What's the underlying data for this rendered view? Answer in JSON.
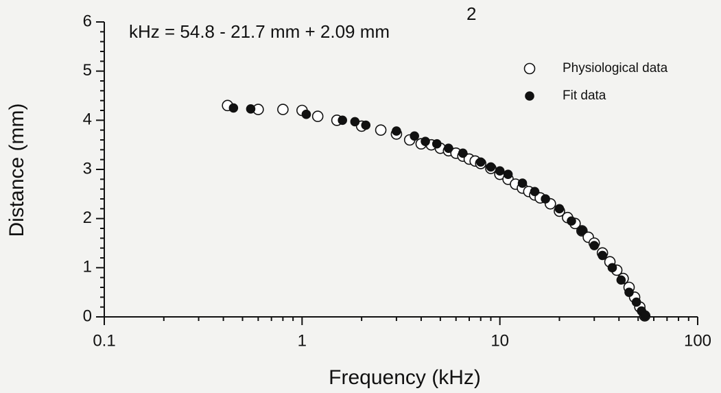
{
  "chart_data": {
    "type": "scatter",
    "annotation": "kHz = 54.8 - 21.7 mm + 2.09 mm",
    "annotation_superscript": "2",
    "x_label": "Frequency (kHz)",
    "y_label": "Distance (mm)",
    "xlog": true,
    "xlim": [
      0.1,
      100
    ],
    "ylim": [
      0,
      6
    ],
    "xticks": [
      0.1,
      1,
      10,
      100
    ],
    "yticks": [
      0,
      1,
      2,
      3,
      4,
      5,
      6
    ],
    "xminorticks": [
      0.2,
      0.3,
      0.4,
      0.5,
      0.6,
      0.7,
      0.8,
      0.9,
      2,
      3,
      4,
      5,
      6,
      7,
      8,
      9,
      20,
      30,
      40,
      50,
      60,
      70,
      80,
      90
    ],
    "yminorticks": [
      0.2,
      0.4,
      0.6,
      0.8,
      1.2,
      1.4,
      1.6,
      1.8,
      2.2,
      2.4,
      2.6,
      2.8,
      3.2,
      3.4,
      3.6,
      3.8,
      4.2,
      4.4,
      4.6,
      4.8,
      5.2,
      5.4,
      5.6,
      5.8
    ],
    "legend": "upper right",
    "series": [
      {
        "name": "Physiological data",
        "color": "#111111",
        "filled": false,
        "x": [
          0.42,
          0.6,
          0.8,
          1.0,
          1.2,
          1.5,
          2.0,
          2.5,
          3.0,
          3.5,
          4.0,
          4.5,
          5.0,
          5.5,
          6.0,
          6.5,
          7.0,
          7.5,
          8.0,
          9.0,
          10,
          11,
          12,
          13,
          14,
          15,
          16,
          18,
          20,
          22,
          24,
          26,
          28,
          30,
          33,
          36,
          39,
          42,
          45,
          48,
          51,
          54
        ],
        "values": [
          4.3,
          4.22,
          4.22,
          4.2,
          4.08,
          4.0,
          3.88,
          3.8,
          3.72,
          3.6,
          3.52,
          3.5,
          3.43,
          3.38,
          3.33,
          3.27,
          3.21,
          3.17,
          3.12,
          3.02,
          2.9,
          2.8,
          2.7,
          2.62,
          2.55,
          2.48,
          2.42,
          2.3,
          2.15,
          2.02,
          1.9,
          1.75,
          1.62,
          1.5,
          1.3,
          1.12,
          0.95,
          0.78,
          0.6,
          0.4,
          0.2,
          0.02
        ]
      },
      {
        "name": "Fit data",
        "color": "#111111",
        "filled": true,
        "x": [
          0.45,
          0.55,
          1.05,
          1.6,
          1.85,
          2.1,
          3.0,
          3.7,
          4.2,
          4.8,
          5.5,
          6.5,
          8.0,
          9.0,
          10,
          11,
          13,
          15,
          17,
          20,
          23,
          26,
          30,
          33,
          37,
          41,
          45,
          49,
          52,
          54
        ],
        "values": [
          4.25,
          4.23,
          4.12,
          4.0,
          3.97,
          3.9,
          3.78,
          3.68,
          3.57,
          3.52,
          3.43,
          3.33,
          3.15,
          3.05,
          2.97,
          2.9,
          2.72,
          2.55,
          2.4,
          2.2,
          1.95,
          1.75,
          1.45,
          1.25,
          1.0,
          0.75,
          0.5,
          0.3,
          0.12,
          0.02
        ]
      }
    ]
  }
}
